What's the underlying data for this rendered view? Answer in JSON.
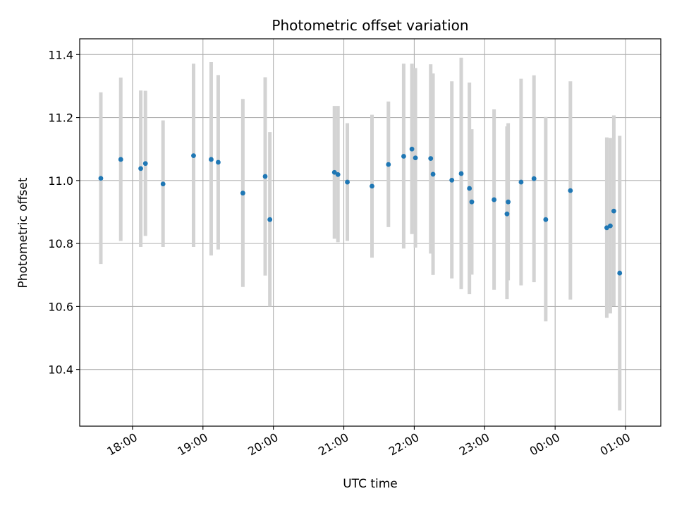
{
  "chart_data": {
    "type": "scatter",
    "title": "Photometric offset variation",
    "xlabel": "UTC time",
    "ylabel": "Photometric offset",
    "x_axis": {
      "kind": "time",
      "range": [
        "17:15",
        "01:30"
      ],
      "ticks": [
        "18:00",
        "19:00",
        "20:00",
        "21:00",
        "22:00",
        "23:00",
        "00:00",
        "01:00"
      ]
    },
    "y_axis": {
      "range": [
        10.22,
        11.45
      ],
      "ticks": [
        "10.4",
        "10.6",
        "10.8",
        "11.0",
        "11.2",
        "11.4"
      ]
    },
    "grid": true,
    "colors": {
      "point": "#1f77b4",
      "errorbar": "#d3d3d3",
      "grid": "#b0b0b0"
    },
    "series": [
      {
        "points": [
          {
            "t": "17:33",
            "y": 11.007,
            "lo": 10.735,
            "hi": 11.28
          },
          {
            "t": "17:50",
            "y": 11.067,
            "lo": 10.808,
            "hi": 11.327
          },
          {
            "t": "18:07",
            "y": 11.038,
            "lo": 10.789,
            "hi": 11.286
          },
          {
            "t": "18:11",
            "y": 11.054,
            "lo": 10.824,
            "hi": 11.285
          },
          {
            "t": "18:26",
            "y": 10.989,
            "lo": 10.789,
            "hi": 11.191
          },
          {
            "t": "18:52",
            "y": 11.079,
            "lo": 10.789,
            "hi": 11.371
          },
          {
            "t": "19:07",
            "y": 11.067,
            "lo": 10.762,
            "hi": 11.376
          },
          {
            "t": "19:13",
            "y": 11.058,
            "lo": 10.781,
            "hi": 11.335
          },
          {
            "t": "19:34",
            "y": 10.96,
            "lo": 10.662,
            "hi": 11.259
          },
          {
            "t": "19:53",
            "y": 11.013,
            "lo": 10.698,
            "hi": 11.328
          },
          {
            "t": "19:57",
            "y": 10.876,
            "lo": 10.6,
            "hi": 11.154
          },
          {
            "t": "20:52",
            "y": 11.026,
            "lo": 10.815,
            "hi": 11.237
          },
          {
            "t": "20:55",
            "y": 11.019,
            "lo": 10.804,
            "hi": 11.237
          },
          {
            "t": "21:03",
            "y": 10.995,
            "lo": 10.808,
            "hi": 11.182
          },
          {
            "t": "21:24",
            "y": 10.982,
            "lo": 10.755,
            "hi": 11.209
          },
          {
            "t": "21:38",
            "y": 11.051,
            "lo": 10.852,
            "hi": 11.251
          },
          {
            "t": "21:51",
            "y": 11.077,
            "lo": 10.784,
            "hi": 11.371
          },
          {
            "t": "21:58",
            "y": 11.1,
            "lo": 10.83,
            "hi": 11.371
          },
          {
            "t": "22:01",
            "y": 11.072,
            "lo": 10.787,
            "hi": 11.357
          },
          {
            "t": "22:14",
            "y": 11.07,
            "lo": 10.768,
            "hi": 11.369
          },
          {
            "t": "22:16",
            "y": 11.02,
            "lo": 10.7,
            "hi": 11.34
          },
          {
            "t": "22:32",
            "y": 11.001,
            "lo": 10.689,
            "hi": 11.315
          },
          {
            "t": "22:40",
            "y": 11.022,
            "lo": 10.655,
            "hi": 11.39
          },
          {
            "t": "22:47",
            "y": 10.975,
            "lo": 10.639,
            "hi": 11.311
          },
          {
            "t": "22:49",
            "y": 10.932,
            "lo": 10.701,
            "hi": 11.163
          },
          {
            "t": "23:08",
            "y": 10.939,
            "lo": 10.653,
            "hi": 11.226
          },
          {
            "t": "23:19",
            "y": 10.894,
            "lo": 10.623,
            "hi": 11.172
          },
          {
            "t": "23:20",
            "y": 10.932,
            "lo": 10.683,
            "hi": 11.182
          },
          {
            "t": "23:31",
            "y": 10.995,
            "lo": 10.667,
            "hi": 11.323
          },
          {
            "t": "23:42",
            "y": 11.006,
            "lo": 10.677,
            "hi": 11.334
          },
          {
            "t": "23:52",
            "y": 10.876,
            "lo": 10.553,
            "hi": 11.202
          },
          {
            "t": "00:13",
            "y": 10.968,
            "lo": 10.622,
            "hi": 11.315
          },
          {
            "t": "00:44",
            "y": 10.85,
            "lo": 10.564,
            "hi": 11.137
          },
          {
            "t": "00:47",
            "y": 10.856,
            "lo": 10.578,
            "hi": 11.135
          },
          {
            "t": "00:50",
            "y": 10.903,
            "lo": 10.601,
            "hi": 11.207
          },
          {
            "t": "00:55",
            "y": 10.706,
            "lo": 10.27,
            "hi": 11.142
          }
        ]
      }
    ]
  }
}
